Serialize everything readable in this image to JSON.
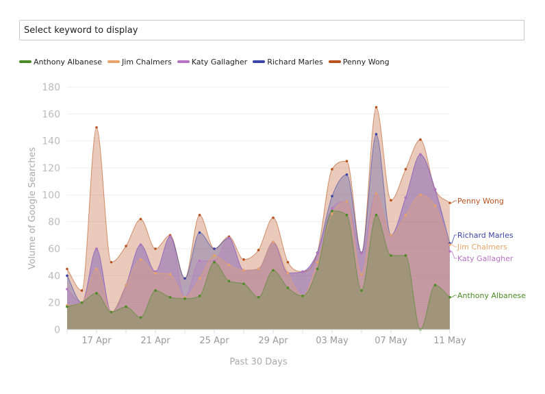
{
  "search": {
    "placeholder": "Select keyword to display"
  },
  "colors": {
    "Anthony Albanese": "#4b8a25",
    "Jim Chalmers": "#e8a46a",
    "Katy Gallagher": "#b774c4",
    "Richard Marles": "#3b45a8",
    "Penny Wong": "#b8521e"
  },
  "chart_data": {
    "type": "area",
    "stacked": false,
    "title": "",
    "xlabel": "Past 30 Days",
    "ylabel": "Volume of Google Searches",
    "ylim": [
      0,
      180
    ],
    "yticks": [
      0,
      20,
      40,
      60,
      80,
      100,
      120,
      140,
      160,
      180
    ],
    "x_tick_labels": [
      {
        "index": 2,
        "label": "17 Apr"
      },
      {
        "index": 6,
        "label": "21 Apr"
      },
      {
        "index": 10,
        "label": "25 Apr"
      },
      {
        "index": 14,
        "label": "29 Apr"
      },
      {
        "index": 18,
        "label": "03 May"
      },
      {
        "index": 22,
        "label": "07 May"
      },
      {
        "index": 26,
        "label": "11 May"
      }
    ],
    "x": [
      "15 Apr",
      "16 Apr",
      "17 Apr",
      "18 Apr",
      "19 Apr",
      "20 Apr",
      "21 Apr",
      "22 Apr",
      "23 Apr",
      "24 Apr",
      "25 Apr",
      "26 Apr",
      "27 Apr",
      "28 Apr",
      "29 Apr",
      "30 Apr",
      "01 May",
      "02 May",
      "03 May",
      "04 May",
      "05 May",
      "06 May",
      "07 May",
      "08 May",
      "09 May",
      "10 May",
      "11 May"
    ],
    "legend_position": "top-left",
    "series": [
      {
        "name": "Penny Wong",
        "values": [
          45,
          29,
          150,
          50,
          62,
          82,
          60,
          70,
          38,
          85,
          60,
          69,
          52,
          59,
          83,
          50,
          43,
          57,
          119,
          125,
          57,
          165,
          96,
          119,
          141,
          104,
          94
        ]
      },
      {
        "name": "Richard Marles",
        "values": [
          40,
          20,
          60,
          13,
          33,
          63,
          43,
          69,
          38,
          72,
          60,
          68,
          44,
          45,
          65,
          42,
          43,
          57,
          99,
          115,
          57,
          145,
          70,
          98,
          130,
          104,
          64
        ]
      },
      {
        "name": "Katy Gallagher",
        "values": [
          30,
          20,
          60,
          13,
          33,
          63,
          43,
          69,
          24,
          51,
          51,
          68,
          44,
          45,
          65,
          42,
          43,
          57,
          90,
          95,
          57,
          101,
          70,
          98,
          130,
          104,
          58
        ]
      },
      {
        "name": "Jim Chalmers",
        "values": [
          18,
          20,
          45,
          13,
          33,
          52,
          42,
          41,
          24,
          38,
          55,
          48,
          44,
          45,
          65,
          42,
          25,
          50,
          86,
          95,
          41,
          101,
          70,
          85,
          100,
          92,
          63
        ]
      },
      {
        "name": "Anthony Albanese",
        "values": [
          17,
          20,
          27,
          13,
          17,
          9,
          29,
          24,
          23,
          25,
          50,
          36,
          34,
          24,
          44,
          31,
          25,
          45,
          88,
          85,
          29,
          85,
          55,
          55,
          0,
          33,
          24
        ]
      }
    ],
    "end_labels": [
      {
        "series": "Penny Wong",
        "label": "Penny Wong"
      },
      {
        "series": "Richard Marles",
        "label": "Richard Marles"
      },
      {
        "series": "Jim Chalmers",
        "label": "Jim Chalmers"
      },
      {
        "series": "Katy Gallagher",
        "label": "Katy Gallagher"
      },
      {
        "series": "Anthony Albanese",
        "label": "Anthony Albanese"
      }
    ]
  }
}
